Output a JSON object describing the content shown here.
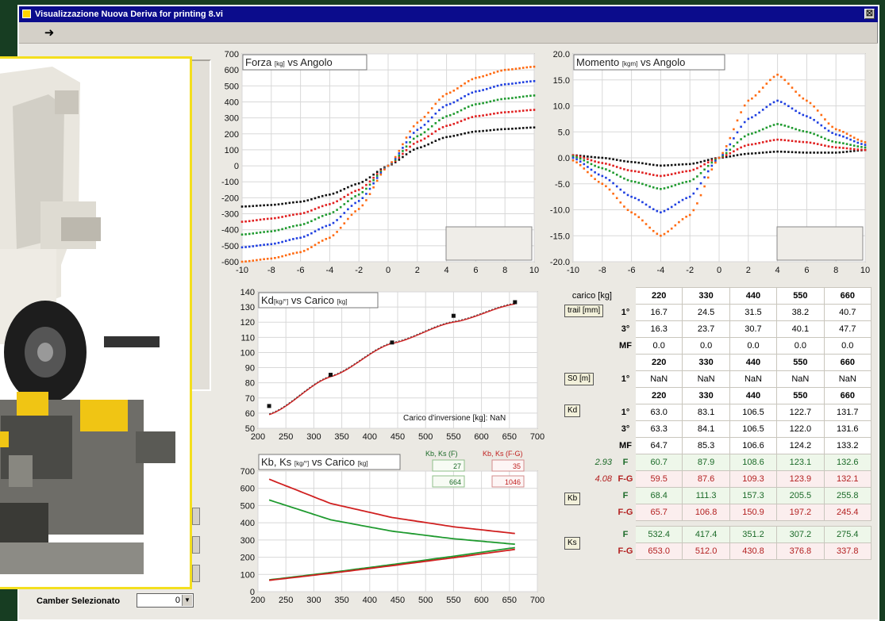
{
  "window": {
    "title": "Visualizzazione Nuova Deriva for printing 8.vi",
    "close_glyph": "☒"
  },
  "toolbar": {
    "run_glyph": "➜",
    "run_icon": "run-arrow-icon"
  },
  "camber": {
    "label": "Camber Selezionato",
    "value": "0"
  },
  "series_colors": [
    "#111111",
    "#e02020",
    "#1f9a2f",
    "#1f3fe0",
    "#ff6a10"
  ],
  "charts": {
    "forza": {
      "title": "Forza",
      "unit": "[kg]",
      "suffix": "vs Angolo",
      "xticks": [
        "-10",
        "-8",
        "-6",
        "-4",
        "-2",
        "0",
        "2",
        "4",
        "6",
        "8",
        "10"
      ],
      "yticks": [
        "700",
        "600",
        "500",
        "400",
        "300",
        "200",
        "100",
        "0",
        "-100",
        "-200",
        "-300",
        "-400",
        "-500",
        "-600"
      ]
    },
    "momento": {
      "title": "Momento",
      "unit": "[kgm]",
      "suffix": "vs Angolo",
      "xticks": [
        "-10",
        "-8",
        "-6",
        "-4",
        "-2",
        "0",
        "2",
        "4",
        "6",
        "8",
        "10"
      ],
      "yticks": [
        "20.0",
        "15.0",
        "10.0",
        "5.0",
        "0.0",
        "-5.0",
        "-10.0",
        "-15.0",
        "-20.0"
      ]
    },
    "kd": {
      "title": "Kd",
      "unit": "[kg/°]",
      "mid": "vs Carico",
      "unit2": "[kg]",
      "annotation": "Carico d'inversione [kg]: NaN",
      "xticks": [
        "200",
        "250",
        "300",
        "350",
        "400",
        "450",
        "500",
        "550",
        "600",
        "650",
        "700"
      ],
      "yticks": [
        "140",
        "130",
        "120",
        "110",
        "100",
        "90",
        "80",
        "70",
        "60",
        "50"
      ]
    },
    "kbks": {
      "title": "Kb, Ks",
      "unit": "[kg/°]",
      "mid": "vs Carico",
      "unit2": "[kg]",
      "legend_green": "Kb, Ks (F)",
      "legend_red": "Kb, Ks (F-G)",
      "legend_green_vals": [
        "27",
        "664"
      ],
      "legend_red_vals": [
        "35",
        "1046"
      ],
      "xticks": [
        "200",
        "250",
        "300",
        "350",
        "400",
        "450",
        "500",
        "550",
        "600",
        "650",
        "700"
      ],
      "yticks": [
        "700",
        "600",
        "500",
        "400",
        "300",
        "200",
        "100",
        "0"
      ]
    }
  },
  "chart_data": [
    {
      "type": "scatter",
      "title": "Forza [kg] vs Angolo",
      "xlim": [
        -10,
        10
      ],
      "ylim": [
        -600,
        700
      ],
      "series": [
        {
          "color": "#111111",
          "x": [
            -10,
            -8,
            -6,
            -4,
            -2,
            0,
            2,
            4,
            6,
            8,
            10
          ],
          "values": [
            -255,
            -245,
            -225,
            -180,
            -110,
            0,
            110,
            180,
            215,
            230,
            240
          ]
        },
        {
          "color": "#e02020",
          "x": [
            -10,
            -8,
            -6,
            -4,
            -2,
            0,
            2,
            4,
            6,
            8,
            10
          ],
          "values": [
            -350,
            -330,
            -300,
            -240,
            -150,
            0,
            150,
            250,
            310,
            335,
            350
          ]
        },
        {
          "color": "#1f9a2f",
          "x": [
            -10,
            -8,
            -6,
            -4,
            -2,
            0,
            2,
            4,
            6,
            8,
            10
          ],
          "values": [
            -430,
            -410,
            -370,
            -300,
            -180,
            0,
            185,
            310,
            385,
            420,
            440
          ]
        },
        {
          "color": "#1f3fe0",
          "x": [
            -10,
            -8,
            -6,
            -4,
            -2,
            0,
            2,
            4,
            6,
            8,
            10
          ],
          "values": [
            -510,
            -490,
            -450,
            -370,
            -220,
            0,
            225,
            380,
            465,
            510,
            530
          ]
        },
        {
          "color": "#ff6a10",
          "x": [
            -10,
            -8,
            -6,
            -4,
            -2,
            0,
            2,
            4,
            6,
            8,
            10
          ],
          "values": [
            -600,
            -580,
            -540,
            -450,
            -270,
            0,
            270,
            450,
            550,
            600,
            620
          ]
        }
      ]
    },
    {
      "type": "scatter",
      "title": "Momento [kgm] vs Angolo",
      "xlim": [
        -10,
        10
      ],
      "ylim": [
        -20,
        20
      ],
      "series": [
        {
          "color": "#111111",
          "x": [
            -10,
            -8,
            -6,
            -4,
            -2,
            0,
            2,
            4,
            6,
            8,
            10
          ],
          "values": [
            0.5,
            0.0,
            -0.8,
            -1.5,
            -1.2,
            0,
            0.8,
            1.2,
            1.0,
            1.0,
            1.5
          ]
        },
        {
          "color": "#e02020",
          "x": [
            -10,
            -8,
            -6,
            -4,
            -2,
            0,
            2,
            4,
            6,
            8,
            10
          ],
          "values": [
            0.5,
            -1.0,
            -2.5,
            -3.5,
            -2.5,
            0,
            2.5,
            3.5,
            3.0,
            2.0,
            1.5
          ]
        },
        {
          "color": "#1f9a2f",
          "x": [
            -10,
            -8,
            -6,
            -4,
            -2,
            0,
            2,
            4,
            6,
            8,
            10
          ],
          "values": [
            0.3,
            -2.0,
            -4.5,
            -6.0,
            -4.5,
            0,
            4.5,
            6.5,
            5.0,
            3.0,
            2.0
          ]
        },
        {
          "color": "#1f3fe0",
          "x": [
            -10,
            -8,
            -6,
            -4,
            -2,
            0,
            2,
            4,
            6,
            8,
            10
          ],
          "values": [
            0.0,
            -3.5,
            -7.5,
            -10.5,
            -7.5,
            0,
            7.5,
            11.0,
            8.0,
            4.5,
            2.5
          ]
        },
        {
          "color": "#ff6a10",
          "x": [
            -10,
            -8,
            -6,
            -4,
            -2,
            0,
            2,
            4,
            6,
            8,
            10
          ],
          "values": [
            -0.5,
            -5.0,
            -10.5,
            -15.0,
            -11.0,
            0,
            11.0,
            16.0,
            11.0,
            5.5,
            3.0
          ]
        }
      ]
    },
    {
      "type": "line",
      "title": "Kd [kg/°] vs Carico [kg]",
      "xlim": [
        200,
        700
      ],
      "ylim": [
        50,
        140
      ],
      "points": {
        "x": [
          220,
          330,
          440,
          550,
          660
        ],
        "values": [
          64.7,
          85.3,
          106.6,
          124.2,
          133.2
        ]
      },
      "fit": {
        "x": [
          220,
          330,
          440,
          550,
          660
        ],
        "values": [
          59,
          84,
          106,
          120,
          132
        ]
      }
    },
    {
      "type": "line",
      "title": "Kb, Ks [kg/°] vs Carico [kg]",
      "xlim": [
        200,
        700
      ],
      "ylim": [
        0,
        700
      ],
      "series": [
        {
          "name": "Kb, Ks (F)",
          "color": "#1f9a2f",
          "x": [
            220,
            330,
            440,
            550,
            660
          ],
          "values": [
            532.4,
            417.4,
            351.2,
            307.2,
            275.4
          ]
        },
        {
          "name": "Kb, Ks (F-G)",
          "color": "#d02020",
          "x": [
            220,
            330,
            440,
            550,
            660
          ],
          "values": [
            653.0,
            512.0,
            430.8,
            376.8,
            337.8
          ]
        },
        {
          "name": "Kb, Ks (F)",
          "color": "#1f9a2f",
          "x": [
            220,
            330,
            440,
            550,
            660
          ],
          "values": [
            68.4,
            111.3,
            157.3,
            205.5,
            255.8
          ]
        },
        {
          "name": "Kb, Ks (F-G)",
          "color": "#d02020",
          "x": [
            220,
            330,
            440,
            550,
            660
          ],
          "values": [
            65.7,
            106.8,
            150.9,
            197.2,
            245.4
          ]
        }
      ]
    }
  ],
  "table": {
    "carico_label": "carico [kg]",
    "carico": [
      "220",
      "330",
      "440",
      "550",
      "660"
    ],
    "trail": {
      "label": "trail [mm]",
      "rows": [
        {
          "sub": "1°",
          "vals": [
            "16.7",
            "24.5",
            "31.5",
            "38.2",
            "40.7"
          ]
        },
        {
          "sub": "3°",
          "vals": [
            "16.3",
            "23.7",
            "30.7",
            "40.1",
            "47.7"
          ]
        },
        {
          "sub": "MF",
          "vals": [
            "0.0",
            "0.0",
            "0.0",
            "0.0",
            "0.0"
          ]
        }
      ]
    },
    "s0": {
      "label": "S0 [m]",
      "header": [
        "220",
        "330",
        "440",
        "550",
        "660"
      ],
      "rows": [
        {
          "sub": "1°",
          "vals": [
            "NaN",
            "NaN",
            "NaN",
            "NaN",
            "NaN"
          ]
        }
      ]
    },
    "kd": {
      "label": "Kd",
      "header": [
        "220",
        "330",
        "440",
        "550",
        "660"
      ],
      "rows": [
        {
          "sub": "1°",
          "vals": [
            "63.0",
            "83.1",
            "106.5",
            "122.7",
            "131.7"
          ]
        },
        {
          "sub": "3°",
          "vals": [
            "63.3",
            "84.1",
            "106.5",
            "122.0",
            "131.6"
          ]
        },
        {
          "sub": "MF",
          "vals": [
            "64.7",
            "85.3",
            "106.6",
            "124.2",
            "133.2"
          ]
        },
        {
          "left": "2.93",
          "sub": "F",
          "vals": [
            "60.7",
            "87.9",
            "108.6",
            "123.1",
            "132.6"
          ]
        },
        {
          "left": "4.08",
          "sub": "F-G",
          "vals": [
            "59.5",
            "87.6",
            "109.3",
            "123.9",
            "132.1"
          ]
        }
      ]
    },
    "kb": {
      "label": "Kb",
      "rows": [
        {
          "sub": "F",
          "vals": [
            "68.4",
            "111.3",
            "157.3",
            "205.5",
            "255.8"
          ]
        },
        {
          "sub": "F-G",
          "vals": [
            "65.7",
            "106.8",
            "150.9",
            "197.2",
            "245.4"
          ]
        }
      ]
    },
    "ks": {
      "label": "Ks",
      "rows": [
        {
          "sub": "F",
          "vals": [
            "532.4",
            "417.4",
            "351.2",
            "307.2",
            "275.4"
          ]
        },
        {
          "sub": "F-G",
          "vals": [
            "653.0",
            "512.0",
            "430.8",
            "376.8",
            "337.8"
          ]
        }
      ]
    }
  }
}
